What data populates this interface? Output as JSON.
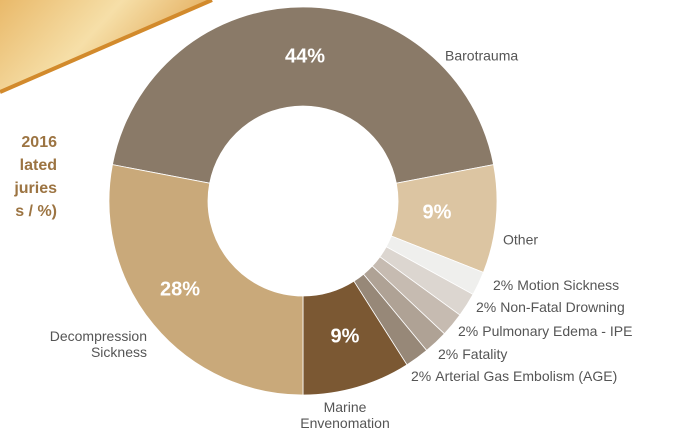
{
  "chart_data": {
    "type": "donut",
    "title": [
      "2016",
      "lated",
      "juries",
      "s / %)"
    ],
    "categories": [
      "Barotrauma",
      "Other",
      "Motion Sickness",
      "Non-Fatal Drowning",
      "Pulmonary Edema - IPE",
      "Fatality",
      "Arterial Gas Embolism (AGE)",
      "Marine Envenomation",
      "Decompression Sickness"
    ],
    "values": [
      44,
      9,
      2,
      2,
      2,
      2,
      2,
      9,
      28
    ],
    "value_labels": [
      "44%",
      "9%",
      "2%",
      "2%",
      "2%",
      "2%",
      "2%",
      "9%",
      "28%"
    ],
    "colors": [
      "#8a7a68",
      "#dcc5a2",
      "#efefed",
      "#dcd6d0",
      "#c6bbb1",
      "#afa295",
      "#978878",
      "#7b5833",
      "#c9a97a"
    ]
  }
}
